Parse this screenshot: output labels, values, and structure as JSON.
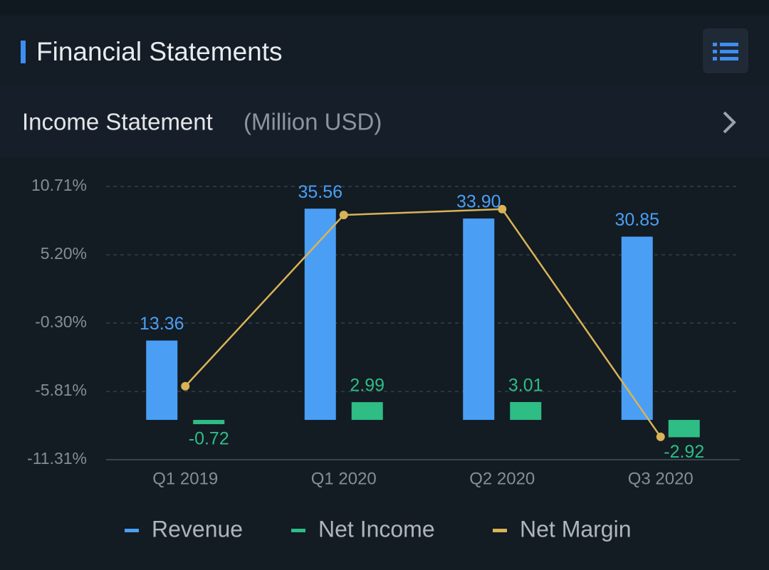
{
  "header": {
    "title": "Financial Statements",
    "section": "Income Statement",
    "unit": "(Million USD)"
  },
  "chart_data": {
    "type": "bar-line",
    "categories": [
      "Q1 2019",
      "Q1 2020",
      "Q2 2020",
      "Q3 2020"
    ],
    "series": [
      {
        "name": "Revenue",
        "color": "#4a9ff5",
        "type": "bar",
        "axis": "y2",
        "values": [
          13.36,
          35.56,
          33.9,
          30.85
        ],
        "value_labels": [
          "13.36",
          "35.56",
          "33.90",
          "30.85"
        ]
      },
      {
        "name": "Net Income",
        "color": "#2ebd85",
        "type": "bar",
        "axis": "y2",
        "values": [
          -0.72,
          2.99,
          3.01,
          -2.92
        ],
        "value_labels": [
          "-0.72",
          "2.99",
          "3.01",
          "-2.92"
        ]
      },
      {
        "name": "Net Margin",
        "color": "#d9b356",
        "type": "line",
        "values": [
          -5.39,
          8.41,
          8.88,
          -9.47
        ]
      }
    ],
    "ylim": [
      -11.31,
      10.71
    ],
    "yticks": [
      {
        "value": 10.71,
        "label": "10.71%"
      },
      {
        "value": 5.2,
        "label": "5.20%"
      },
      {
        "value": -0.3,
        "label": "-0.30%"
      },
      {
        "value": -5.81,
        "label": "-5.81%"
      },
      {
        "value": -11.31,
        "label": "-11.31%"
      }
    ],
    "y2lim": [
      -6.7,
      39.3
    ],
    "grid": true,
    "legend": "bottom"
  }
}
